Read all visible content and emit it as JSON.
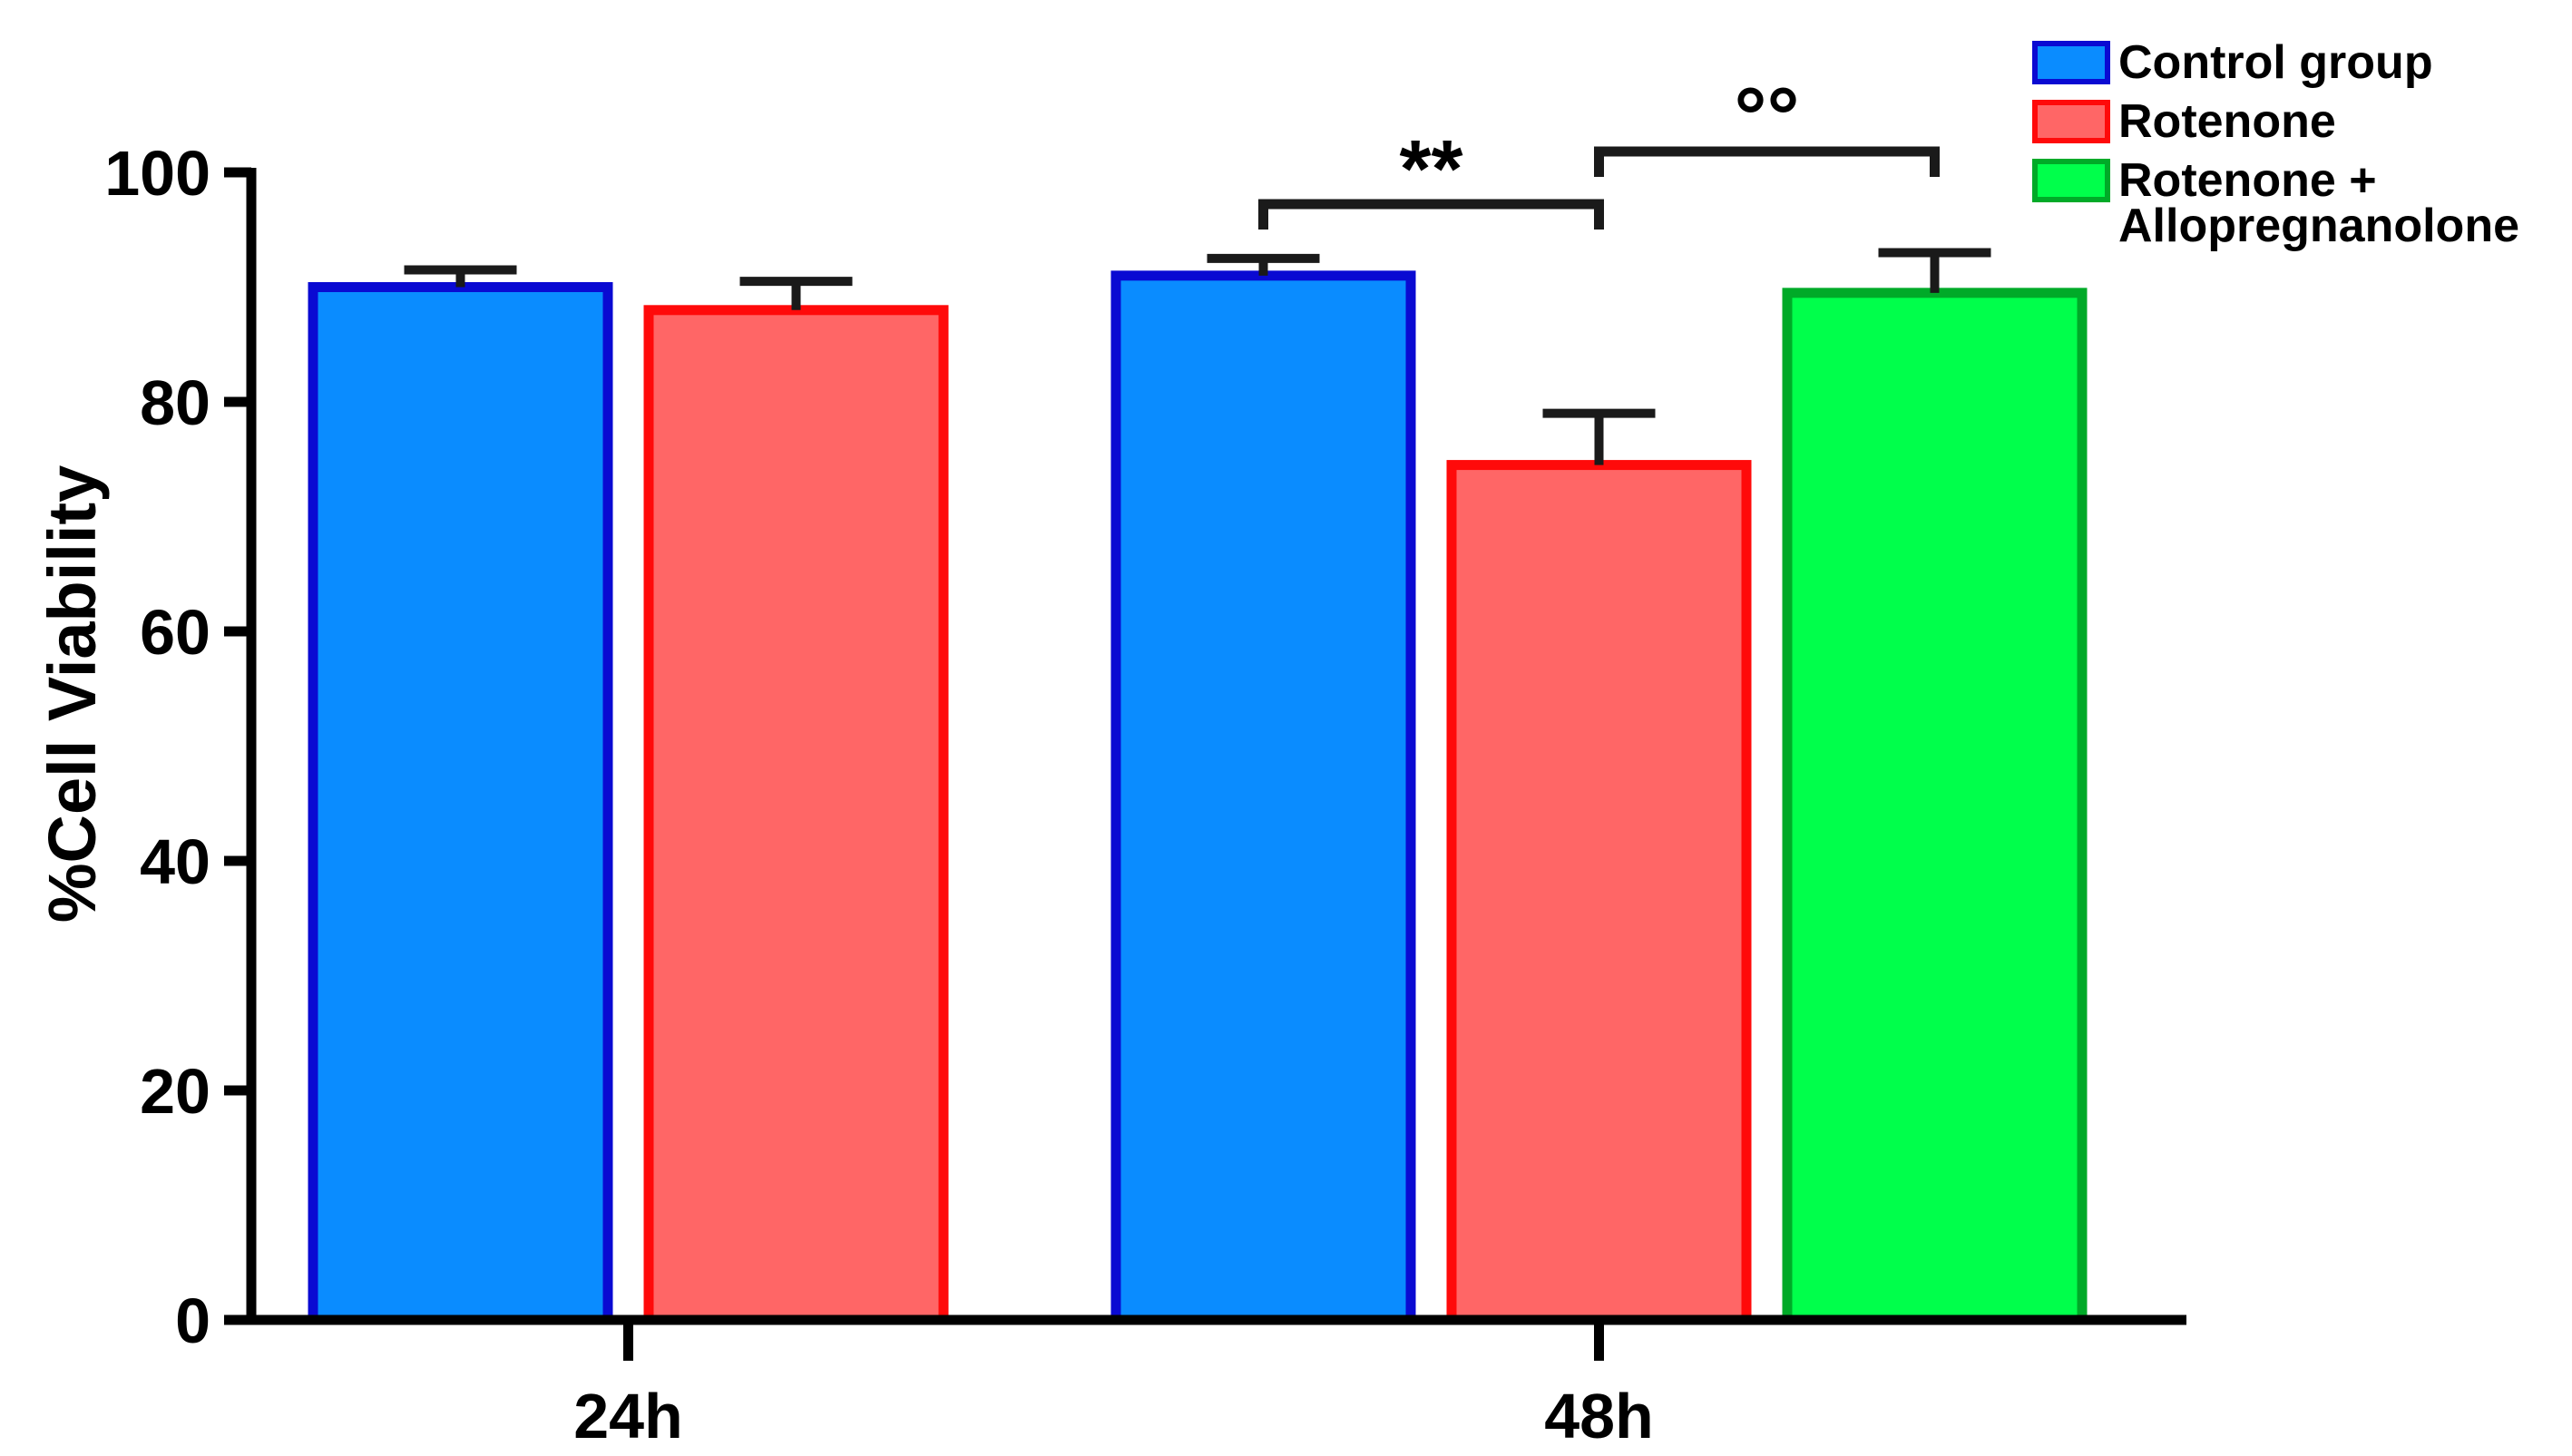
{
  "chart_data": {
    "type": "bar",
    "title": "",
    "xlabel": "",
    "ylabel": "%Cell Viability",
    "ylim": [
      0,
      100
    ],
    "yticks": [
      0,
      20,
      40,
      60,
      80,
      100
    ],
    "grid": false,
    "legend_position": "top-right",
    "groups": [
      {
        "label": "24h",
        "bars": [
          {
            "series": "Control group",
            "value": 90,
            "error": 1.5
          },
          {
            "series": "Rotenone",
            "value": 88,
            "error": 2.5
          }
        ]
      },
      {
        "label": "48h",
        "bars": [
          {
            "series": "Control group",
            "value": 91,
            "error": 1.5
          },
          {
            "series": "Rotenone",
            "value": 74.5,
            "error": 4.5
          },
          {
            "series": "Rotenone + Allopregnanolone",
            "value": 89.5,
            "error": 3.5
          }
        ]
      }
    ],
    "series": [
      {
        "name": "Control group",
        "legend_lines": [
          "Control group"
        ],
        "fill": "#0a8cff",
        "stroke": "#0a0ad2"
      },
      {
        "name": "Rotenone",
        "legend_lines": [
          "Rotenone"
        ],
        "fill": "#ff6666",
        "stroke": "#ff0a0a"
      },
      {
        "name": "Rotenone + Allopregnanolone",
        "legend_lines": [
          "Rotenone +",
          "Allopregnanolone"
        ],
        "fill": "#00ff4b",
        "stroke": "#00aa28"
      }
    ],
    "annotations": [
      {
        "text": "**",
        "from": "48h Control group",
        "to": "48h Rotenone"
      },
      {
        "text": "°°",
        "from": "48h Rotenone",
        "to": "48h Rotenone + Allopregnanolone"
      }
    ]
  }
}
